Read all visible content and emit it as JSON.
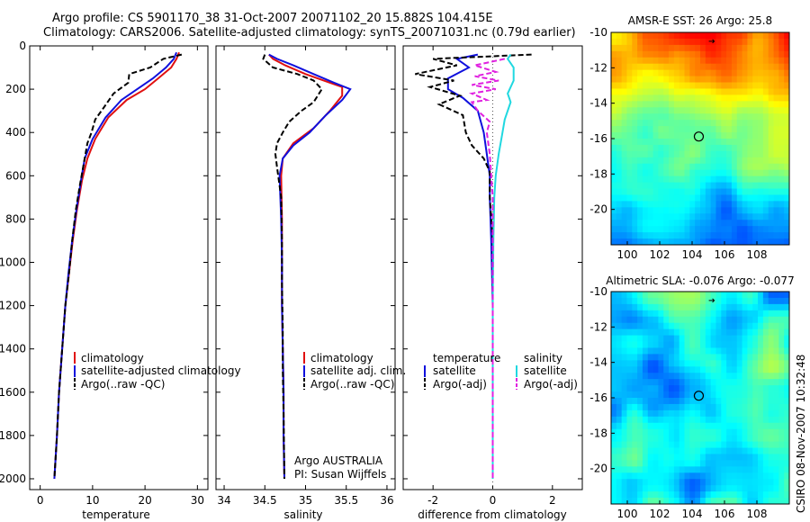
{
  "title_line1": "Argo profile: CS 5901170_38 31-Oct-2007 20071102_20 15.882S 104.415E",
  "title_line2": "Climatology: CARS2006. Satellite-adjusted climatology: synTS_20071031.nc (0.79d earlier)",
  "footer_text": "CSIRO 08-Nov-2007 10:32:48",
  "colors": {
    "climatology": "#e01010",
    "satellite": "#1010dd",
    "argo": "#000000",
    "salinity_satellite": "#20d8e0",
    "salinity_argo": "#e020e0"
  },
  "chart_data": [
    {
      "type": "line",
      "title": "",
      "xlabel": "temperature",
      "ylabel": "",
      "xlim": [
        -2,
        32
      ],
      "ylim": [
        2050,
        0
      ],
      "y_reversed": true,
      "xticks": [
        "0",
        "10",
        "20",
        "30"
      ],
      "yticks": [
        "0",
        "200",
        "400",
        "600",
        "800",
        "1000",
        "1200",
        "1400",
        "1600",
        "1800",
        "2000"
      ],
      "legend": [
        "climatology",
        "satellite-adjusted climatology",
        "Argo(..raw -QC)"
      ],
      "series": [
        {
          "name": "climatology",
          "points": [
            [
              26.5,
              30
            ],
            [
              26,
              60
            ],
            [
              25,
              100
            ],
            [
              22.5,
              150
            ],
            [
              20,
              200
            ],
            [
              16.5,
              250
            ],
            [
              13,
              330
            ],
            [
              10.5,
              430
            ],
            [
              9,
              520
            ],
            [
              8,
              620
            ],
            [
              7,
              760
            ],
            [
              6.2,
              900
            ],
            [
              5.5,
              1050
            ],
            [
              4.8,
              1200
            ],
            [
              4.2,
              1400
            ],
            [
              3.6,
              1600
            ],
            [
              3.2,
              1800
            ],
            [
              2.7,
              2000
            ]
          ]
        },
        {
          "name": "satellite-adjusted climatology",
          "points": [
            [
              26,
              30
            ],
            [
              25.5,
              60
            ],
            [
              24,
              100
            ],
            [
              21.5,
              150
            ],
            [
              18.5,
              200
            ],
            [
              15.5,
              250
            ],
            [
              12.5,
              330
            ],
            [
              10,
              430
            ],
            [
              8.5,
              520
            ],
            [
              7.8,
              620
            ],
            [
              6.9,
              760
            ],
            [
              6.1,
              900
            ],
            [
              5.4,
              1050
            ],
            [
              4.8,
              1200
            ],
            [
              4.2,
              1400
            ],
            [
              3.6,
              1600
            ],
            [
              3.2,
              1800
            ],
            [
              2.7,
              2000
            ]
          ]
        },
        {
          "name": "Argo(..raw -QC)",
          "points": [
            [
              27,
              40
            ],
            [
              23.5,
              60
            ],
            [
              21,
              100
            ],
            [
              17,
              130
            ],
            [
              16.8,
              170
            ],
            [
              14,
              220
            ],
            [
              12,
              290
            ],
            [
              10.5,
              340
            ],
            [
              9.8,
              400
            ],
            [
              9,
              450
            ],
            [
              8.2,
              560
            ],
            [
              7.6,
              640
            ],
            [
              6.8,
              760
            ],
            [
              6.1,
              900
            ],
            [
              5.5,
              1050
            ],
            [
              4.8,
              1200
            ],
            [
              4.2,
              1400
            ],
            [
              3.6,
              1600
            ],
            [
              3.2,
              1800
            ],
            [
              2.7,
              2000
            ]
          ]
        }
      ]
    },
    {
      "type": "line",
      "title": "",
      "xlabel": "salinity",
      "ylabel": "",
      "xlim": [
        33.9,
        36.1
      ],
      "ylim": [
        2050,
        0
      ],
      "y_reversed": true,
      "xticks": [
        "34",
        "34.5",
        "35",
        "35.5",
        "36"
      ],
      "legend": [
        "climatology",
        "satellite adj. clim.",
        "Argo(..raw -QC)"
      ],
      "annotations": [
        "Argo AUSTRALIA",
        "PI: Susan Wijffels"
      ],
      "series": [
        {
          "name": "climatology",
          "points": [
            [
              34.55,
              40
            ],
            [
              34.6,
              60
            ],
            [
              34.75,
              90
            ],
            [
              35.0,
              130
            ],
            [
              35.3,
              170
            ],
            [
              35.45,
              190
            ],
            [
              35.45,
              230
            ],
            [
              35.3,
              300
            ],
            [
              35.1,
              380
            ],
            [
              34.85,
              450
            ],
            [
              34.72,
              520
            ],
            [
              34.7,
              600
            ],
            [
              34.71,
              800
            ],
            [
              34.71,
              1000
            ],
            [
              34.71,
              1200
            ],
            [
              34.72,
              1400
            ],
            [
              34.73,
              1600
            ],
            [
              34.73,
              1800
            ],
            [
              34.74,
              2000
            ]
          ]
        },
        {
          "name": "satellite adj. clim.",
          "points": [
            [
              34.55,
              40
            ],
            [
              34.65,
              60
            ],
            [
              34.85,
              90
            ],
            [
              35.1,
              130
            ],
            [
              35.35,
              170
            ],
            [
              35.55,
              200
            ],
            [
              35.45,
              250
            ],
            [
              35.25,
              320
            ],
            [
              35.05,
              400
            ],
            [
              34.85,
              460
            ],
            [
              34.72,
              520
            ],
            [
              34.68,
              600
            ],
            [
              34.7,
              800
            ],
            [
              34.71,
              1000
            ],
            [
              34.71,
              1200
            ],
            [
              34.72,
              1400
            ],
            [
              34.73,
              1600
            ],
            [
              34.73,
              1800
            ],
            [
              34.74,
              2000
            ]
          ]
        },
        {
          "name": "Argo(..raw -QC)",
          "points": [
            [
              34.5,
              40
            ],
            [
              34.48,
              60
            ],
            [
              34.6,
              100
            ],
            [
              34.9,
              130
            ],
            [
              35.1,
              160
            ],
            [
              35.2,
              200
            ],
            [
              35.1,
              260
            ],
            [
              34.95,
              300
            ],
            [
              34.8,
              350
            ],
            [
              34.72,
              400
            ],
            [
              34.65,
              450
            ],
            [
              34.63,
              500
            ],
            [
              34.65,
              560
            ],
            [
              34.7,
              700
            ],
            [
              34.71,
              900
            ],
            [
              34.71,
              1100
            ],
            [
              34.72,
              1300
            ],
            [
              34.72,
              1500
            ],
            [
              34.73,
              1700
            ],
            [
              34.74,
              2000
            ]
          ]
        }
      ]
    },
    {
      "type": "line",
      "title": "",
      "xlabel": "difference from climatology",
      "ylabel": "",
      "xlim": [
        -3,
        3
      ],
      "ylim": [
        2050,
        0
      ],
      "y_reversed": true,
      "xticks": [
        "-2",
        "0",
        "2"
      ],
      "legend_left": [
        "temperature",
        "satellite",
        "Argo(-adj)"
      ],
      "legend_right": [
        "salinity",
        "satellite",
        "Argo(-adj)"
      ],
      "series": [
        {
          "name": "temperature satellite",
          "points": [
            [
              -0.5,
              40
            ],
            [
              -1.2,
              60
            ],
            [
              -0.8,
              100
            ],
            [
              -1.5,
              150
            ],
            [
              -1.5,
              200
            ],
            [
              -1.0,
              240
            ],
            [
              -0.5,
              300
            ],
            [
              -0.3,
              400
            ],
            [
              -0.2,
              500
            ],
            [
              -0.1,
              600
            ],
            [
              -0.1,
              700
            ],
            [
              -0.05,
              900
            ],
            [
              0,
              1200
            ],
            [
              0,
              2000
            ]
          ]
        },
        {
          "name": "temperature Argo(-adj)",
          "points": [
            [
              1.3,
              40
            ],
            [
              -2.0,
              60
            ],
            [
              -1.2,
              90
            ],
            [
              -2.6,
              130
            ],
            [
              -1.3,
              160
            ],
            [
              -2.1,
              190
            ],
            [
              -1.1,
              230
            ],
            [
              -1.8,
              270
            ],
            [
              -1.0,
              320
            ],
            [
              -0.9,
              400
            ],
            [
              -0.7,
              460
            ],
            [
              -0.3,
              520
            ],
            [
              -0.1,
              580
            ],
            [
              -0.1,
              700
            ],
            [
              0,
              900
            ],
            [
              0,
              2000
            ]
          ]
        },
        {
          "name": "salinity satellite",
          "points": [
            [
              0.6,
              40
            ],
            [
              0.5,
              60
            ],
            [
              0.7,
              100
            ],
            [
              0.7,
              160
            ],
            [
              0.5,
              220
            ],
            [
              0.6,
              260
            ],
            [
              0.4,
              340
            ],
            [
              0.3,
              420
            ],
            [
              0.2,
              500
            ],
            [
              0.1,
              600
            ],
            [
              0.05,
              700
            ],
            [
              0.02,
              900
            ],
            [
              0,
              1200
            ],
            [
              0,
              2000
            ]
          ]
        },
        {
          "name": "salinity Argo(-adj)",
          "points": [
            [
              0.4,
              60
            ],
            [
              -0.6,
              90
            ],
            [
              0.1,
              120
            ],
            [
              -0.6,
              140
            ],
            [
              0.2,
              160
            ],
            [
              -0.7,
              180
            ],
            [
              0.1,
              200
            ],
            [
              -0.7,
              220
            ],
            [
              -0.2,
              250
            ],
            [
              -0.7,
              260
            ],
            [
              -0.5,
              300
            ],
            [
              -0.1,
              350
            ],
            [
              -0.2,
              400
            ],
            [
              -0.1,
              500
            ],
            [
              -0.05,
              600
            ],
            [
              0,
              700
            ],
            [
              0,
              2000
            ]
          ]
        }
      ]
    },
    {
      "type": "heatmap",
      "title": "AMSR-E SST: 26 Argo: 25.8",
      "xlim": [
        99,
        110
      ],
      "ylim": [
        -22,
        -10
      ],
      "xticks": [
        "100",
        "102",
        "104",
        "106",
        "108"
      ],
      "yticks": [
        "-10",
        "-12",
        "-14",
        "-16",
        "-18",
        "-20"
      ],
      "marker": {
        "lon": 104.415,
        "lat": -15.882
      }
    },
    {
      "type": "heatmap",
      "title": "Altimetric SLA: -0.076 Argo: -0.077",
      "xlim": [
        99,
        110
      ],
      "ylim": [
        -22,
        -10
      ],
      "xticks": [
        "100",
        "102",
        "104",
        "106",
        "108"
      ],
      "yticks": [
        "-10",
        "-12",
        "-14",
        "-16",
        "-18",
        "-20"
      ],
      "marker": {
        "lon": 104.415,
        "lat": -15.882
      }
    }
  ]
}
